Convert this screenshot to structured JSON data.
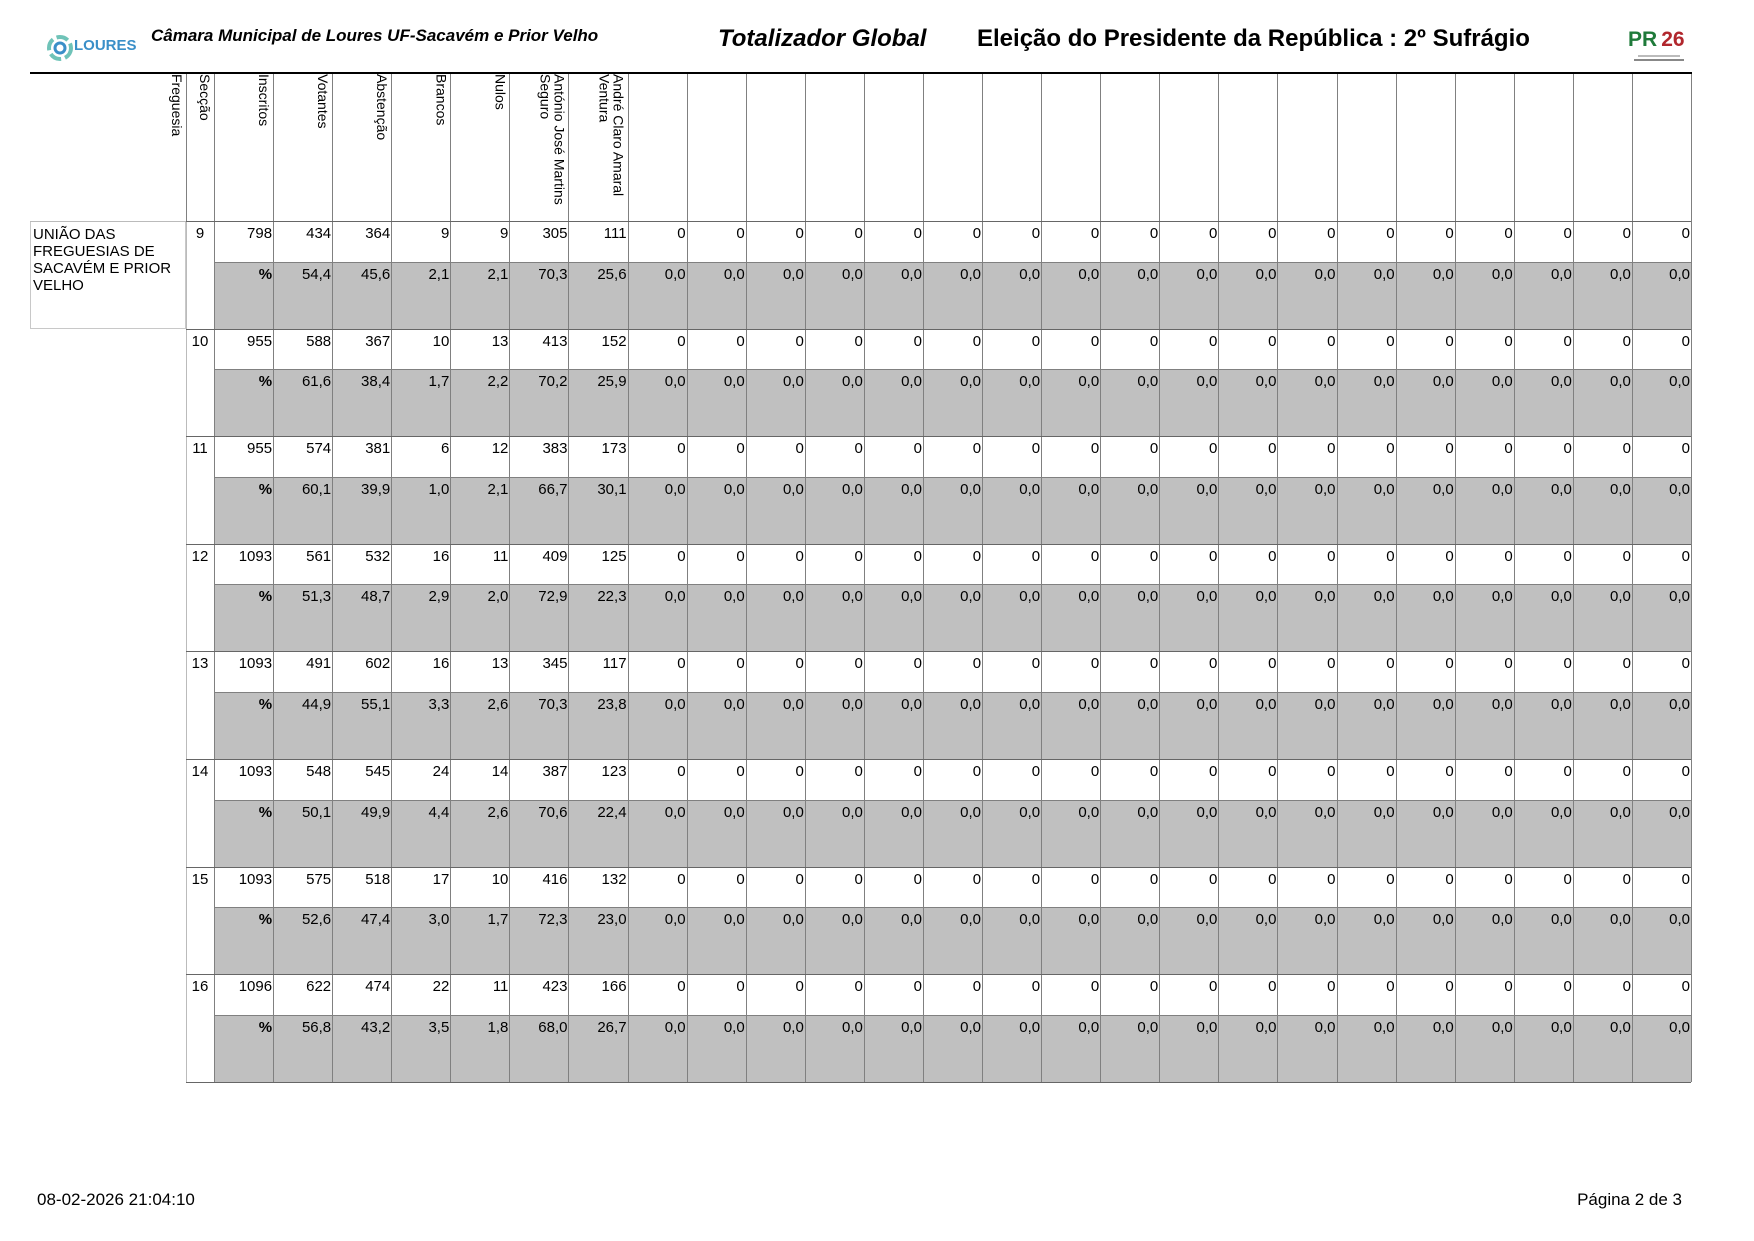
{
  "header": {
    "logo_left": "LOURES",
    "subtitle": "Câmara Municipal de Loures UF-Sacavém e Prior Velho",
    "report_title": "Totalizador Global",
    "election_title": "Eleição do Presidente da República : 2º Sufrágio",
    "logo_right": "PR 26",
    "colors": {
      "logo_left": "#3a8fc8",
      "logo_right_green": "#1f7a3a",
      "logo_right_red": "#b1272d"
    }
  },
  "table": {
    "columns": [
      "Freguesia",
      "Secção",
      "Inscritos",
      "Votantes",
      "Abstenção",
      "Brancos",
      "Nulos",
      "António José Martins\nSeguro",
      "André Claro Amaral\nVentura"
    ],
    "empty_columns": 18,
    "freguesia": "UNIÃO DAS FREGUESIAS DE SACAVÉM E PRIOR VELHO",
    "colors": {
      "pct_row_bg": "#c0c0c0",
      "grid": "#808080"
    },
    "rows": [
      {
        "seccao": "9",
        "counts": [
          "798",
          "434",
          "364",
          "9",
          "9",
          "305",
          "111"
        ],
        "pct": [
          "%",
          "54,4",
          "45,6",
          "2,1",
          "2,1",
          "70,3",
          "25,6"
        ],
        "extra_counts": [
          "0",
          "0",
          "0",
          "0",
          "0",
          "0",
          "0",
          "0",
          "0",
          "0",
          "0",
          "0",
          "0",
          "0",
          "0",
          "0",
          "0",
          "0"
        ],
        "extra_pct": [
          "0,0",
          "0,0",
          "0,0",
          "0,0",
          "0,0",
          "0,0",
          "0,0",
          "0,0",
          "0,0",
          "0,0",
          "0,0",
          "0,0",
          "0,0",
          "0,0",
          "0,0",
          "0,0",
          "0,0",
          "0,0"
        ]
      },
      {
        "seccao": "10",
        "counts": [
          "955",
          "588",
          "367",
          "10",
          "13",
          "413",
          "152"
        ],
        "pct": [
          "%",
          "61,6",
          "38,4",
          "1,7",
          "2,2",
          "70,2",
          "25,9"
        ],
        "extra_counts": [
          "0",
          "0",
          "0",
          "0",
          "0",
          "0",
          "0",
          "0",
          "0",
          "0",
          "0",
          "0",
          "0",
          "0",
          "0",
          "0",
          "0",
          "0"
        ],
        "extra_pct": [
          "0,0",
          "0,0",
          "0,0",
          "0,0",
          "0,0",
          "0,0",
          "0,0",
          "0,0",
          "0,0",
          "0,0",
          "0,0",
          "0,0",
          "0,0",
          "0,0",
          "0,0",
          "0,0",
          "0,0",
          "0,0"
        ]
      },
      {
        "seccao": "11",
        "counts": [
          "955",
          "574",
          "381",
          "6",
          "12",
          "383",
          "173"
        ],
        "pct": [
          "%",
          "60,1",
          "39,9",
          "1,0",
          "2,1",
          "66,7",
          "30,1"
        ],
        "extra_counts": [
          "0",
          "0",
          "0",
          "0",
          "0",
          "0",
          "0",
          "0",
          "0",
          "0",
          "0",
          "0",
          "0",
          "0",
          "0",
          "0",
          "0",
          "0"
        ],
        "extra_pct": [
          "0,0",
          "0,0",
          "0,0",
          "0,0",
          "0,0",
          "0,0",
          "0,0",
          "0,0",
          "0,0",
          "0,0",
          "0,0",
          "0,0",
          "0,0",
          "0,0",
          "0,0",
          "0,0",
          "0,0",
          "0,0"
        ]
      },
      {
        "seccao": "12",
        "counts": [
          "1093",
          "561",
          "532",
          "16",
          "11",
          "409",
          "125"
        ],
        "pct": [
          "%",
          "51,3",
          "48,7",
          "2,9",
          "2,0",
          "72,9",
          "22,3"
        ],
        "extra_counts": [
          "0",
          "0",
          "0",
          "0",
          "0",
          "0",
          "0",
          "0",
          "0",
          "0",
          "0",
          "0",
          "0",
          "0",
          "0",
          "0",
          "0",
          "0"
        ],
        "extra_pct": [
          "0,0",
          "0,0",
          "0,0",
          "0,0",
          "0,0",
          "0,0",
          "0,0",
          "0,0",
          "0,0",
          "0,0",
          "0,0",
          "0,0",
          "0,0",
          "0,0",
          "0,0",
          "0,0",
          "0,0",
          "0,0"
        ]
      },
      {
        "seccao": "13",
        "counts": [
          "1093",
          "491",
          "602",
          "16",
          "13",
          "345",
          "117"
        ],
        "pct": [
          "%",
          "44,9",
          "55,1",
          "3,3",
          "2,6",
          "70,3",
          "23,8"
        ],
        "extra_counts": [
          "0",
          "0",
          "0",
          "0",
          "0",
          "0",
          "0",
          "0",
          "0",
          "0",
          "0",
          "0",
          "0",
          "0",
          "0",
          "0",
          "0",
          "0"
        ],
        "extra_pct": [
          "0,0",
          "0,0",
          "0,0",
          "0,0",
          "0,0",
          "0,0",
          "0,0",
          "0,0",
          "0,0",
          "0,0",
          "0,0",
          "0,0",
          "0,0",
          "0,0",
          "0,0",
          "0,0",
          "0,0",
          "0,0"
        ]
      },
      {
        "seccao": "14",
        "counts": [
          "1093",
          "548",
          "545",
          "24",
          "14",
          "387",
          "123"
        ],
        "pct": [
          "%",
          "50,1",
          "49,9",
          "4,4",
          "2,6",
          "70,6",
          "22,4"
        ],
        "extra_counts": [
          "0",
          "0",
          "0",
          "0",
          "0",
          "0",
          "0",
          "0",
          "0",
          "0",
          "0",
          "0",
          "0",
          "0",
          "0",
          "0",
          "0",
          "0"
        ],
        "extra_pct": [
          "0,0",
          "0,0",
          "0,0",
          "0,0",
          "0,0",
          "0,0",
          "0,0",
          "0,0",
          "0,0",
          "0,0",
          "0,0",
          "0,0",
          "0,0",
          "0,0",
          "0,0",
          "0,0",
          "0,0",
          "0,0"
        ]
      },
      {
        "seccao": "15",
        "counts": [
          "1093",
          "575",
          "518",
          "17",
          "10",
          "416",
          "132"
        ],
        "pct": [
          "%",
          "52,6",
          "47,4",
          "3,0",
          "1,7",
          "72,3",
          "23,0"
        ],
        "extra_counts": [
          "0",
          "0",
          "0",
          "0",
          "0",
          "0",
          "0",
          "0",
          "0",
          "0",
          "0",
          "0",
          "0",
          "0",
          "0",
          "0",
          "0",
          "0"
        ],
        "extra_pct": [
          "0,0",
          "0,0",
          "0,0",
          "0,0",
          "0,0",
          "0,0",
          "0,0",
          "0,0",
          "0,0",
          "0,0",
          "0,0",
          "0,0",
          "0,0",
          "0,0",
          "0,0",
          "0,0",
          "0,0",
          "0,0"
        ]
      },
      {
        "seccao": "16",
        "counts": [
          "1096",
          "622",
          "474",
          "22",
          "11",
          "423",
          "166"
        ],
        "pct": [
          "%",
          "56,8",
          "43,2",
          "3,5",
          "1,8",
          "68,0",
          "26,7"
        ],
        "extra_counts": [
          "0",
          "0",
          "0",
          "0",
          "0",
          "0",
          "0",
          "0",
          "0",
          "0",
          "0",
          "0",
          "0",
          "0",
          "0",
          "0",
          "0",
          "0"
        ],
        "extra_pct": [
          "0,0",
          "0,0",
          "0,0",
          "0,0",
          "0,0",
          "0,0",
          "0,0",
          "0,0",
          "0,0",
          "0,0",
          "0,0",
          "0,0",
          "0,0",
          "0,0",
          "0,0",
          "0,0",
          "0,0",
          "0,0"
        ]
      }
    ]
  },
  "footer": {
    "timestamp": "08-02-2026 21:04:10",
    "page": "Página 2 de 3"
  }
}
